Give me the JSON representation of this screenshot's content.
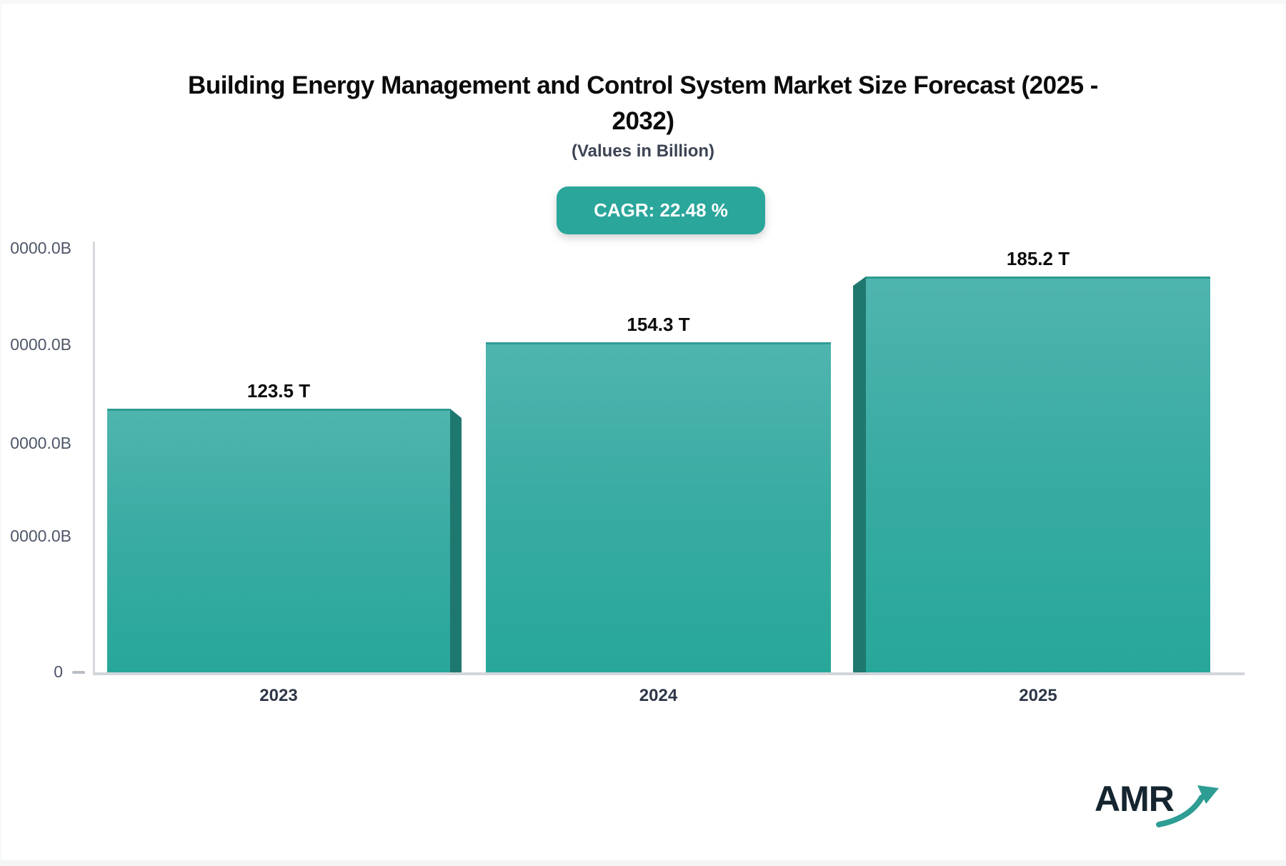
{
  "header": {
    "title_line1": "Building Energy Management and Control System Market Size Forecast (2025 -",
    "title_line2": "2032)",
    "subtitle": "(Values in Billion)",
    "cagr_label": "CAGR: 22.48 %"
  },
  "chart_data": {
    "type": "bar",
    "title": "Building Energy Management and Control System Market Size Forecast (2025 - 2032)",
    "subtitle": "(Values in Billion)",
    "cagr_percent": 22.48,
    "categories": [
      "2023",
      "2024",
      "2025"
    ],
    "values": [
      123.5,
      154.3,
      185.2
    ],
    "unit": "T",
    "value_labels": [
      "123.5 T",
      "154.3 T",
      "185.2 T"
    ],
    "y_axis": {
      "visible_tick_labels": [
        "0000.0B",
        "0000.0B",
        "0000.0B",
        "0000.0B",
        "0"
      ],
      "gridlines": false
    },
    "legend": "none",
    "colors": {
      "bar_face_top": "#4FB5AE",
      "bar_face_bottom": "#27A79A",
      "bar_side_shadow": "#1F786F",
      "badge_background": "#2AA69B",
      "axis_line": "#D2D5DA"
    }
  },
  "footer": {
    "brand": "AMR"
  }
}
